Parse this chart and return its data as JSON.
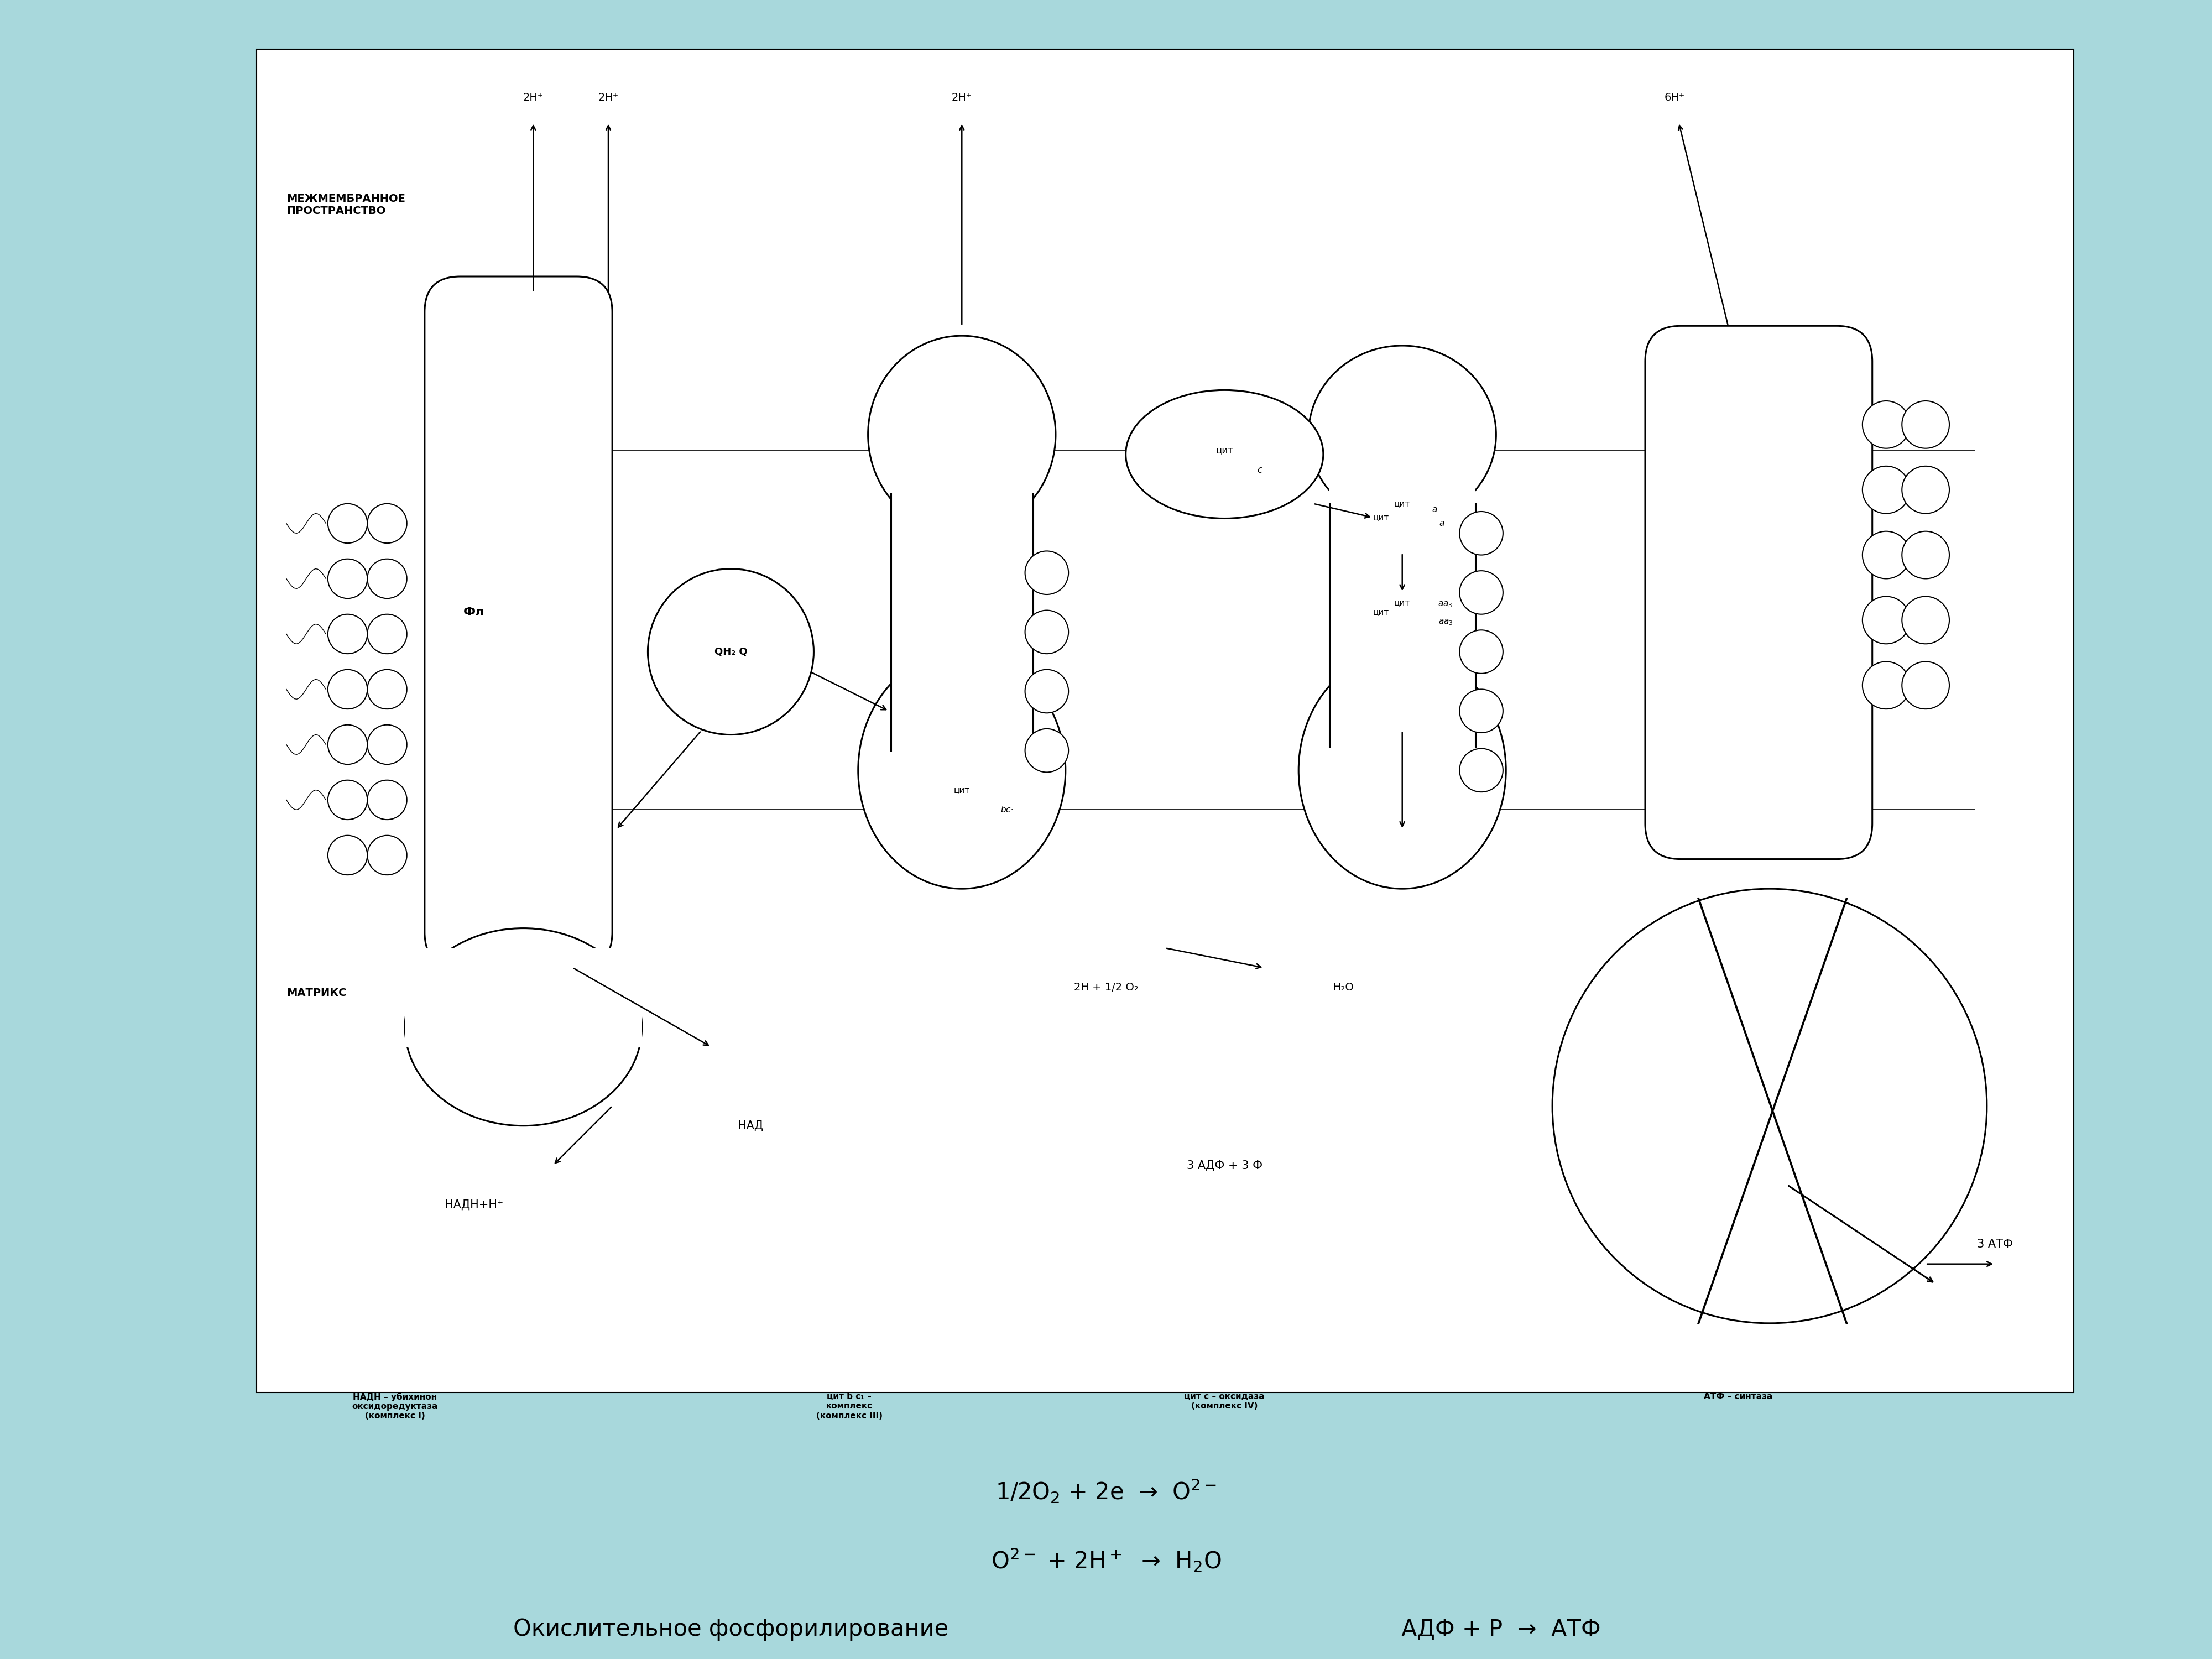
{
  "bg_color": "#a8d8dc",
  "lw": 2.2,
  "label_intermembrane": "МЕЖМЕМБРАННОЕ\nПРОСТРАНСТВО",
  "label_matrix": "МАТРИКС",
  "label_fl": "Фл",
  "label_qh2q": "QH₂ Q",
  "label_cyt_bc1": "цит  bc₁",
  "label_cyt_c": "цит c",
  "label_cyt_a": "цит a",
  "label_cyt_aa3": "цит aa₃",
  "label_2h_half_o2": "2H + 1/2 O₂",
  "label_h2o": "H₂O",
  "label_nadh_h": "НАДН+Н⁺",
  "label_nad": "НАД",
  "label_3adp": "3 АДФ + 3 Ф",
  "label_3atp": "3 АТФ",
  "label_2h1": "2H⁺",
  "label_2h2": "2H⁺",
  "label_2h3": "2H⁺",
  "label_6h": "6H⁺",
  "label_complex1": "НАДН – убихинон\nоксидоредуктаза\n(комплекс I)",
  "label_complex3": "цит b c₁ –\nкомплекс\n(комплекс III)",
  "label_complex4": "цит c – оксидаза\n(комплекс IV)",
  "label_complex5": "АТФ – синтаза",
  "eq1": "1/2O$_2$ + 2e  →  O$^{2-}$",
  "eq2": "O$^{2-}$ + 2H$^+$  →  H$_2$O",
  "eq3_left": "Окислительное фосфорилирование",
  "eq3_right": "АДФ + Р  →  АТФ"
}
